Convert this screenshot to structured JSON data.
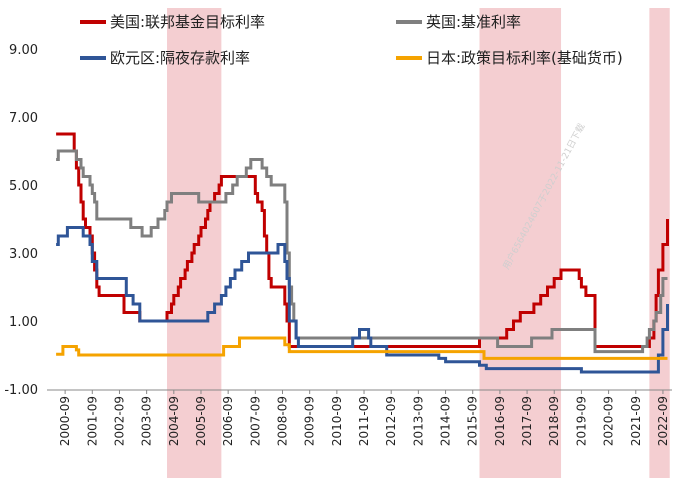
{
  "chart_data": {
    "type": "line",
    "title": "",
    "xlabel": "",
    "ylabel": "",
    "ylim": [
      -1.0,
      9.0
    ],
    "yticks": [
      9.0,
      7.0,
      5.0,
      3.0,
      1.0,
      -1.0
    ],
    "ytick_labels": [
      "9.00",
      "7.00",
      "5.00",
      "3.00",
      "1.00",
      "-1.00"
    ],
    "xlim": [
      "2000-01",
      "2023-01"
    ],
    "xtick_labels": [
      "2000-09",
      "2001-09",
      "2002-09",
      "2003-09",
      "2004-09",
      "2005-09",
      "2006-09",
      "2007-09",
      "2008-09",
      "2009-09",
      "2010-09",
      "2011-09",
      "2012-09",
      "2013-09",
      "2014-09",
      "2015-09",
      "2016-09",
      "2017-09",
      "2018-09",
      "2019-09",
      "2020-09",
      "2021-09",
      "2022-09"
    ],
    "grid": "none",
    "legend": "top",
    "shaded_periods": [
      {
        "start": "2004-06",
        "end": "2006-06"
      },
      {
        "start": "2015-12",
        "end": "2018-12"
      },
      {
        "start": "2022-03",
        "end": "2022-12"
      }
    ],
    "shade_color": "#f2c6c9",
    "watermark": "用户6564024607于2022-11-21日下载",
    "series": [
      {
        "name": "美国:联邦基金目标利率",
        "color": "#c00000",
        "points": [
          [
            "2000-05",
            6.5
          ],
          [
            "2000-12",
            6.5
          ],
          [
            "2001-01",
            6.0
          ],
          [
            "2001-02",
            5.5
          ],
          [
            "2001-03",
            5.0
          ],
          [
            "2001-04",
            4.5
          ],
          [
            "2001-05",
            4.0
          ],
          [
            "2001-06",
            3.75
          ],
          [
            "2001-08",
            3.5
          ],
          [
            "2001-09",
            3.0
          ],
          [
            "2001-10",
            2.5
          ],
          [
            "2001-11",
            2.0
          ],
          [
            "2001-12",
            1.75
          ],
          [
            "2002-11",
            1.25
          ],
          [
            "2003-06",
            1.0
          ],
          [
            "2004-06",
            1.25
          ],
          [
            "2004-08",
            1.5
          ],
          [
            "2004-09",
            1.75
          ],
          [
            "2004-11",
            2.0
          ],
          [
            "2004-12",
            2.25
          ],
          [
            "2005-02",
            2.5
          ],
          [
            "2005-03",
            2.75
          ],
          [
            "2005-05",
            3.0
          ],
          [
            "2005-06",
            3.25
          ],
          [
            "2005-08",
            3.5
          ],
          [
            "2005-09",
            3.75
          ],
          [
            "2005-11",
            4.0
          ],
          [
            "2005-12",
            4.25
          ],
          [
            "2006-01",
            4.5
          ],
          [
            "2006-03",
            4.75
          ],
          [
            "2006-05",
            5.0
          ],
          [
            "2006-06",
            5.25
          ],
          [
            "2007-09",
            4.75
          ],
          [
            "2007-10",
            4.5
          ],
          [
            "2007-12",
            4.25
          ],
          [
            "2008-01",
            3.5
          ],
          [
            "2008-02",
            3.0
          ],
          [
            "2008-03",
            2.25
          ],
          [
            "2008-04",
            2.0
          ],
          [
            "2008-10",
            1.5
          ],
          [
            "2008-11",
            1.0
          ],
          [
            "2008-12",
            0.25
          ],
          [
            "2015-12",
            0.5
          ],
          [
            "2016-12",
            0.75
          ],
          [
            "2017-03",
            1.0
          ],
          [
            "2017-06",
            1.25
          ],
          [
            "2017-12",
            1.5
          ],
          [
            "2018-03",
            1.75
          ],
          [
            "2018-06",
            2.0
          ],
          [
            "2018-09",
            2.25
          ],
          [
            "2018-12",
            2.5
          ],
          [
            "2019-08",
            2.25
          ],
          [
            "2019-09",
            2.0
          ],
          [
            "2019-11",
            1.75
          ],
          [
            "2020-03",
            0.25
          ],
          [
            "2022-03",
            0.5
          ],
          [
            "2022-05",
            1.0
          ],
          [
            "2022-06",
            1.75
          ],
          [
            "2022-07",
            2.5
          ],
          [
            "2022-09",
            3.25
          ],
          [
            "2022-11",
            4.0
          ]
        ]
      },
      {
        "name": "英国:基准利率",
        "color": "#7f7f7f",
        "points": [
          [
            "2000-05",
            5.75
          ],
          [
            "2000-06",
            6.0
          ],
          [
            "2001-02",
            5.75
          ],
          [
            "2001-04",
            5.5
          ],
          [
            "2001-05",
            5.25
          ],
          [
            "2001-08",
            5.0
          ],
          [
            "2001-09",
            4.75
          ],
          [
            "2001-10",
            4.5
          ],
          [
            "2001-11",
            4.0
          ],
          [
            "2003-02",
            3.75
          ],
          [
            "2003-07",
            3.5
          ],
          [
            "2003-11",
            3.75
          ],
          [
            "2004-02",
            4.0
          ],
          [
            "2004-05",
            4.25
          ],
          [
            "2004-06",
            4.5
          ],
          [
            "2004-08",
            4.75
          ],
          [
            "2005-08",
            4.5
          ],
          [
            "2006-08",
            4.75
          ],
          [
            "2006-11",
            5.0
          ],
          [
            "2007-01",
            5.25
          ],
          [
            "2007-05",
            5.5
          ],
          [
            "2007-07",
            5.75
          ],
          [
            "2007-12",
            5.5
          ],
          [
            "2008-02",
            5.25
          ],
          [
            "2008-04",
            5.0
          ],
          [
            "2008-10",
            4.5
          ],
          [
            "2008-11",
            3.0
          ],
          [
            "2008-12",
            2.0
          ],
          [
            "2009-01",
            1.5
          ],
          [
            "2009-02",
            1.0
          ],
          [
            "2009-03",
            0.5
          ],
          [
            "2016-08",
            0.25
          ],
          [
            "2017-11",
            0.5
          ],
          [
            "2018-08",
            0.75
          ],
          [
            "2020-03",
            0.1
          ],
          [
            "2021-12",
            0.25
          ],
          [
            "2022-02",
            0.5
          ],
          [
            "2022-03",
            0.75
          ],
          [
            "2022-05",
            1.0
          ],
          [
            "2022-06",
            1.25
          ],
          [
            "2022-08",
            1.75
          ],
          [
            "2022-09",
            2.25
          ],
          [
            "2022-11",
            2.25
          ]
        ]
      },
      {
        "name": "欧元区:隔夜存款利率",
        "color": "#2f5597",
        "points": [
          [
            "2000-05",
            3.25
          ],
          [
            "2000-06",
            3.5
          ],
          [
            "2000-10",
            3.75
          ],
          [
            "2001-05",
            3.5
          ],
          [
            "2001-08",
            3.25
          ],
          [
            "2001-09",
            2.75
          ],
          [
            "2001-11",
            2.25
          ],
          [
            "2002-12",
            1.75
          ],
          [
            "2003-03",
            1.5
          ],
          [
            "2003-06",
            1.0
          ],
          [
            "2005-12",
            1.25
          ],
          [
            "2006-03",
            1.5
          ],
          [
            "2006-06",
            1.75
          ],
          [
            "2006-08",
            2.0
          ],
          [
            "2006-10",
            2.25
          ],
          [
            "2006-12",
            2.5
          ],
          [
            "2007-03",
            2.75
          ],
          [
            "2007-06",
            3.0
          ],
          [
            "2008-07",
            3.25
          ],
          [
            "2008-10",
            2.75
          ],
          [
            "2008-11",
            2.25
          ],
          [
            "2008-12",
            1.0
          ],
          [
            "2009-01",
            1.0
          ],
          [
            "2009-03",
            0.5
          ],
          [
            "2009-04",
            0.25
          ],
          [
            "2011-04",
            0.5
          ],
          [
            "2011-07",
            0.75
          ],
          [
            "2011-11",
            0.5
          ],
          [
            "2011-12",
            0.25
          ],
          [
            "2012-07",
            0.0
          ],
          [
            "2014-06",
            -0.1
          ],
          [
            "2014-09",
            -0.2
          ],
          [
            "2015-12",
            -0.3
          ],
          [
            "2016-03",
            -0.4
          ],
          [
            "2019-09",
            -0.5
          ],
          [
            "2022-07",
            0.0
          ],
          [
            "2022-09",
            0.75
          ],
          [
            "2022-11",
            1.5
          ]
        ]
      },
      {
        "name": "日本:政策目标利率(基础货币)",
        "color": "#f5a300",
        "points": [
          [
            "2000-05",
            0.02
          ],
          [
            "2000-08",
            0.25
          ],
          [
            "2001-02",
            0.15
          ],
          [
            "2001-03",
            0.0
          ],
          [
            "2006-07",
            0.25
          ],
          [
            "2007-02",
            0.5
          ],
          [
            "2008-10",
            0.3
          ],
          [
            "2008-12",
            0.1
          ],
          [
            "2016-02",
            -0.1
          ],
          [
            "2022-11",
            -0.1
          ]
        ]
      }
    ]
  }
}
